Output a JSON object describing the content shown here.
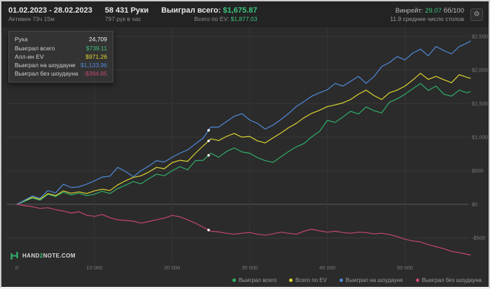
{
  "header": {
    "date_range": "01.02.2023 - 28.02.2023",
    "active_time": "Активен 73ч 15м",
    "hands": "58 431 Руки",
    "hands_per_hour": "797 рук в час",
    "won_label": "Выиграл всего:",
    "won_value": "$1,675.87",
    "ev_label": "Всего по EV:",
    "ev_value": "$1,877.03",
    "winrate_label": "Винрейт:",
    "winrate_value": "29.07",
    "winrate_unit": "бб/100",
    "avg_tables": "11.9 среднее число столов",
    "settings_icon": "gear-icon"
  },
  "tooltip": {
    "rows": [
      {
        "label": "Рука",
        "value": "24,709",
        "color": "#ededed"
      },
      {
        "label": "Выиграл всего",
        "value": "$739.11",
        "color": "#3cc47c"
      },
      {
        "label": "Алл-ин EV",
        "value": "$971.26",
        "color": "#ddd631"
      },
      {
        "label": "Выиграл на шоудауне",
        "value": "$1,133.96",
        "color": "#4f8ad9"
      },
      {
        "label": "Выиграл без шоудауна",
        "value": "-$394.85",
        "color": "#c4476b"
      }
    ]
  },
  "logo": {
    "text_pre": "HAND",
    "text_num": "2",
    "text_post": "NOTE.COM",
    "icon": "hand2note-logo-icon",
    "color": "#2fae68"
  },
  "chart_data": {
    "type": "line",
    "title": "",
    "xlabel": "hands",
    "ylabel": "winnings ($)",
    "xlim": [
      0,
      60000
    ],
    "ylim": [
      -850,
      2600
    ],
    "grid": true,
    "legend_position": "bottom-right",
    "marker_hand": 24709,
    "xticks": [
      {
        "v": 0,
        "label": "0"
      },
      {
        "v": 10000,
        "label": "10 000"
      },
      {
        "v": 20000,
        "label": "20 000"
      },
      {
        "v": 30000,
        "label": "30 000"
      },
      {
        "v": 40000,
        "label": "40 000"
      },
      {
        "v": 50000,
        "label": "50 000"
      }
    ],
    "yticks": [
      {
        "v": 2500,
        "label": "$2,500"
      },
      {
        "v": 2000,
        "label": "$2,000"
      },
      {
        "v": 1500,
        "label": "$1,500"
      },
      {
        "v": 1000,
        "label": "$1,000"
      },
      {
        "v": 500,
        "label": "$500"
      },
      {
        "v": 0,
        "label": "$0"
      },
      {
        "v": -500,
        "label": "-$500"
      }
    ],
    "x": [
      0,
      1000,
      2000,
      3000,
      4000,
      5000,
      6000,
      7000,
      8000,
      9000,
      10000,
      11000,
      12000,
      13000,
      14000,
      15000,
      16000,
      17000,
      18000,
      19000,
      20000,
      21000,
      22000,
      23000,
      24000,
      25000,
      26000,
      27000,
      28000,
      29000,
      30000,
      31000,
      32000,
      33000,
      34000,
      35000,
      36000,
      37000,
      38000,
      39000,
      40000,
      41000,
      42000,
      43000,
      44000,
      45000,
      46000,
      47000,
      48000,
      49000,
      50000,
      51000,
      52000,
      53000,
      54000,
      55000,
      56000,
      57000,
      58000,
      58431
    ],
    "series": [
      {
        "id": "total-won",
        "name": "Выиграл всего",
        "color": "#2fae68",
        "values": [
          0,
          45,
          95,
          60,
          150,
          115,
          180,
          140,
          165,
          130,
          150,
          195,
          160,
          235,
          285,
          340,
          305,
          380,
          450,
          425,
          500,
          560,
          515,
          650,
          655,
          760,
          700,
          785,
          840,
          780,
          760,
          695,
          650,
          625,
          705,
          785,
          855,
          905,
          1005,
          1085,
          1250,
          1220,
          1300,
          1385,
          1345,
          1450,
          1395,
          1360,
          1520,
          1570,
          1640,
          1720,
          1800,
          1695,
          1760,
          1640,
          1610,
          1700,
          1660,
          1675.87
        ]
      },
      {
        "id": "total-ev",
        "name": "Всего по EV",
        "color": "#ddd631",
        "values": [
          0,
          55,
          105,
          75,
          160,
          130,
          200,
          165,
          185,
          160,
          200,
          225,
          205,
          290,
          350,
          400,
          425,
          480,
          550,
          530,
          620,
          655,
          640,
          760,
          870,
          975,
          950,
          1010,
          1055,
          1000,
          1010,
          945,
          915,
          990,
          1060,
          1140,
          1205,
          1290,
          1355,
          1400,
          1455,
          1480,
          1510,
          1560,
          1640,
          1700,
          1620,
          1560,
          1660,
          1700,
          1760,
          1850,
          1950,
          1860,
          1905,
          1855,
          1810,
          1930,
          1890,
          1877.03
        ]
      },
      {
        "id": "won-showdown",
        "name": "Выиграл на шоудауне",
        "color": "#4f8ad9",
        "values": [
          0,
          60,
          125,
          90,
          205,
          170,
          300,
          250,
          260,
          300,
          350,
          405,
          420,
          550,
          490,
          410,
          500,
          570,
          650,
          630,
          700,
          760,
          810,
          900,
          985,
          1150,
          1150,
          1230,
          1310,
          1350,
          1255,
          1205,
          1120,
          1180,
          1260,
          1350,
          1455,
          1530,
          1610,
          1660,
          1705,
          1800,
          1760,
          1830,
          1905,
          1800,
          1900,
          2050,
          2110,
          2200,
          2150,
          2250,
          2310,
          2210,
          2350,
          2290,
          2240,
          2350,
          2400,
          2430
        ]
      },
      {
        "id": "won-nonshowdown",
        "name": "Выиграл без шоудауна",
        "color": "#c4476b",
        "values": [
          0,
          -20,
          -35,
          -60,
          -50,
          -80,
          -100,
          -130,
          -110,
          -160,
          -180,
          -150,
          -200,
          -230,
          -240,
          -250,
          -280,
          -255,
          -230,
          -205,
          -165,
          -185,
          -230,
          -280,
          -340,
          -400,
          -410,
          -430,
          -445,
          -430,
          -420,
          -445,
          -460,
          -440,
          -415,
          -430,
          -445,
          -400,
          -370,
          -395,
          -415,
          -400,
          -420,
          -430,
          -415,
          -420,
          -440,
          -430,
          -450,
          -480,
          -520,
          -545,
          -560,
          -600,
          -630,
          -660,
          -700,
          -720,
          -745,
          -754.13
        ]
      }
    ]
  }
}
